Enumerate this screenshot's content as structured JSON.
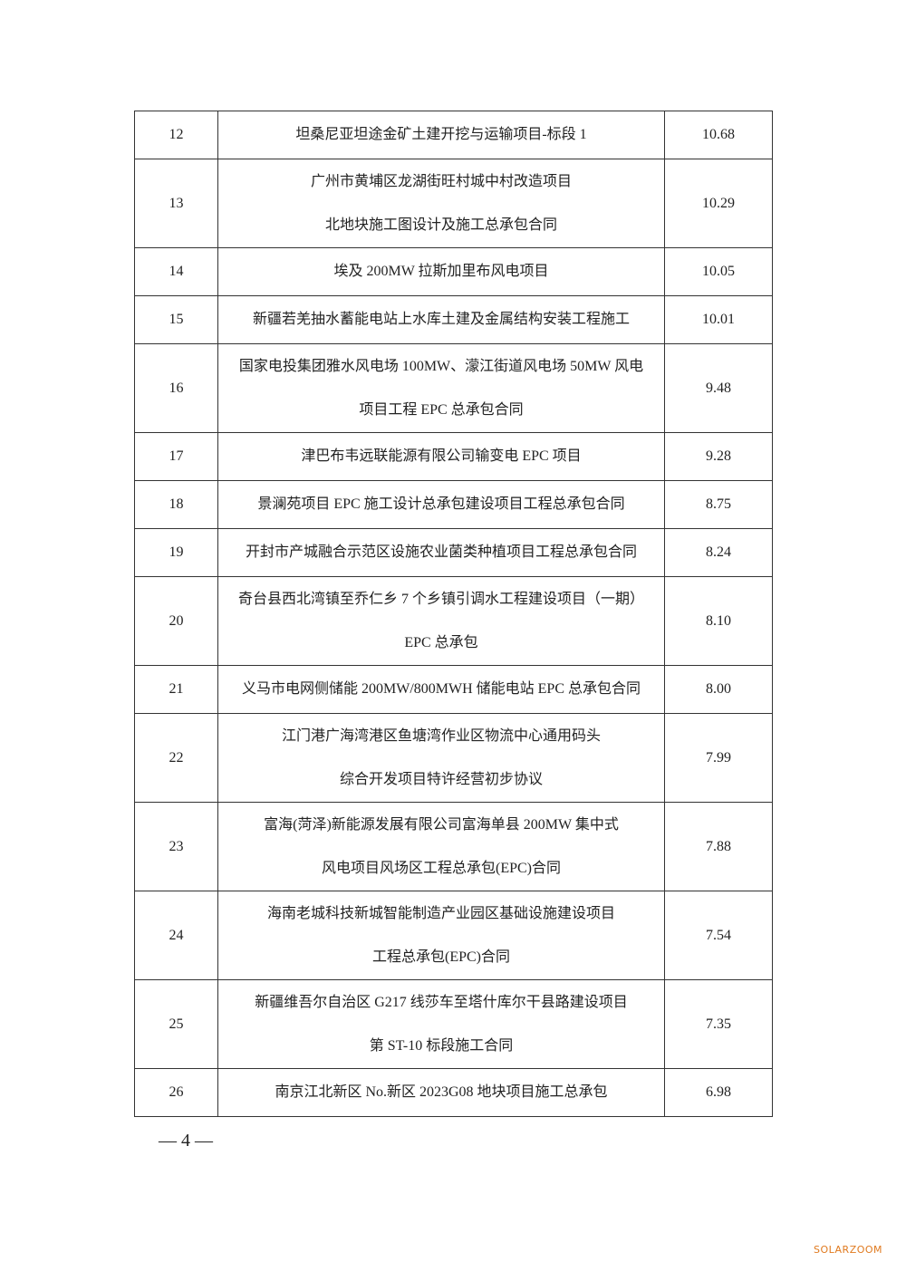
{
  "table": {
    "rows": [
      [
        "12",
        [
          "坦桑尼亚坦途金矿土建开挖与运输项目-标段 1"
        ],
        "10.68"
      ],
      [
        "13",
        [
          "广州市黄埔区龙湖街旺村城中村改造项目",
          "北地块施工图设计及施工总承包合同"
        ],
        "10.29"
      ],
      [
        "14",
        [
          "埃及 200MW 拉斯加里布风电项目"
        ],
        "10.05"
      ],
      [
        "15",
        [
          "新疆若羌抽水蓄能电站上水库土建及金属结构安装工程施工"
        ],
        "10.01"
      ],
      [
        "16",
        [
          "国家电投集团雅水风电场 100MW、濛江街道风电场 50MW 风电",
          "项目工程 EPC 总承包合同"
        ],
        "9.48"
      ],
      [
        "17",
        [
          "津巴布韦远联能源有限公司输变电 EPC 项目"
        ],
        "9.28"
      ],
      [
        "18",
        [
          "景澜苑项目 EPC 施工设计总承包建设项目工程总承包合同"
        ],
        "8.75"
      ],
      [
        "19",
        [
          "开封市产城融合示范区设施农业菌类种植项目工程总承包合同"
        ],
        "8.24"
      ],
      [
        "20",
        [
          "奇台县西北湾镇至乔仁乡 7 个乡镇引调水工程建设项目（一期）",
          "EPC 总承包"
        ],
        "8.10"
      ],
      [
        "21",
        [
          "义马市电网侧储能 200MW/800MWH 储能电站 EPC 总承包合同"
        ],
        "8.00"
      ],
      [
        "22",
        [
          "江门港广海湾港区鱼塘湾作业区物流中心通用码头",
          "综合开发项目特许经营初步协议"
        ],
        "7.99"
      ],
      [
        "23",
        [
          "富海(菏泽)新能源发展有限公司富海单县 200MW 集中式",
          "风电项目风场区工程总承包(EPC)合同"
        ],
        "7.88"
      ],
      [
        "24",
        [
          "海南老城科技新城智能制造产业园区基础设施建设项目",
          "工程总承包(EPC)合同"
        ],
        "7.54"
      ],
      [
        "25",
        [
          "新疆维吾尔自治区 G217 线莎车至塔什库尔干县路建设项目",
          "第 ST-10 标段施工合同"
        ],
        "7.35"
      ],
      [
        "26",
        [
          "南京江北新区 No.新区 2023G08 地块项目施工总承包"
        ],
        "6.98"
      ]
    ]
  },
  "footer": "— 4 —",
  "watermark": "SOLARZOOM"
}
